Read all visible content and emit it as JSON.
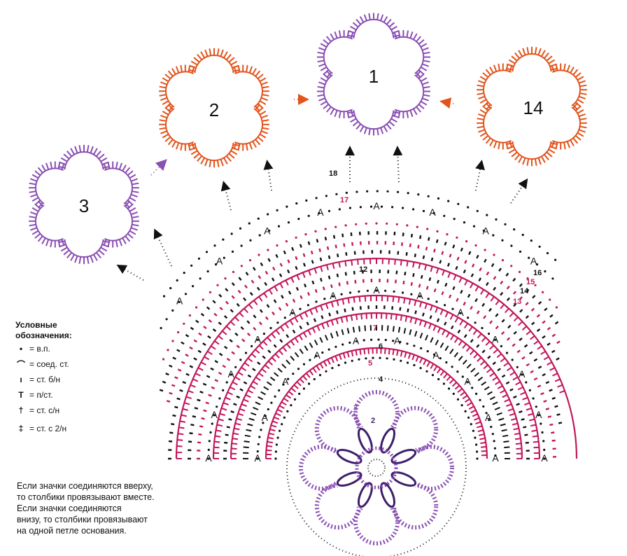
{
  "colors": {
    "purple": "#8a4fb3",
    "orange": "#e2541c",
    "magenta": "#c2185b",
    "black": "#111111",
    "dark_violet": "#3d1f6b"
  },
  "motif_labels": {
    "m1": "1",
    "m2": "2",
    "m3": "3",
    "m14": "14"
  },
  "row_labels": [
    "2",
    "3",
    "4",
    "5",
    "6",
    "7",
    "12",
    "13",
    "14",
    "15",
    "16",
    "17",
    "18"
  ],
  "legend": {
    "title_line1": "Условные",
    "title_line2": "обозначения:",
    "items": [
      {
        "icon": "chain-stitch-icon",
        "symbol": "•",
        "text": "= в.п."
      },
      {
        "icon": "slip-stitch-icon",
        "symbol": "⌒",
        "text": "= соед. ст."
      },
      {
        "icon": "single-crochet-icon",
        "symbol": "ı",
        "text": "= ст. б/н"
      },
      {
        "icon": "half-double-crochet-icon",
        "symbol": "T",
        "text": "= п/ст."
      },
      {
        "icon": "double-crochet-icon",
        "symbol": "†",
        "text": "= ст. с/н"
      },
      {
        "icon": "treble-crochet-icon",
        "symbol": "‡",
        "text": "= ст. с 2/н"
      }
    ]
  },
  "note": {
    "line1": "Если значки соединяются вверху,",
    "line2": "то столбики провязывают вместе.",
    "line3": "Если значки соединяются",
    "line4": "внизу, то столбики провязывают",
    "line5": "на одной петле основания."
  }
}
